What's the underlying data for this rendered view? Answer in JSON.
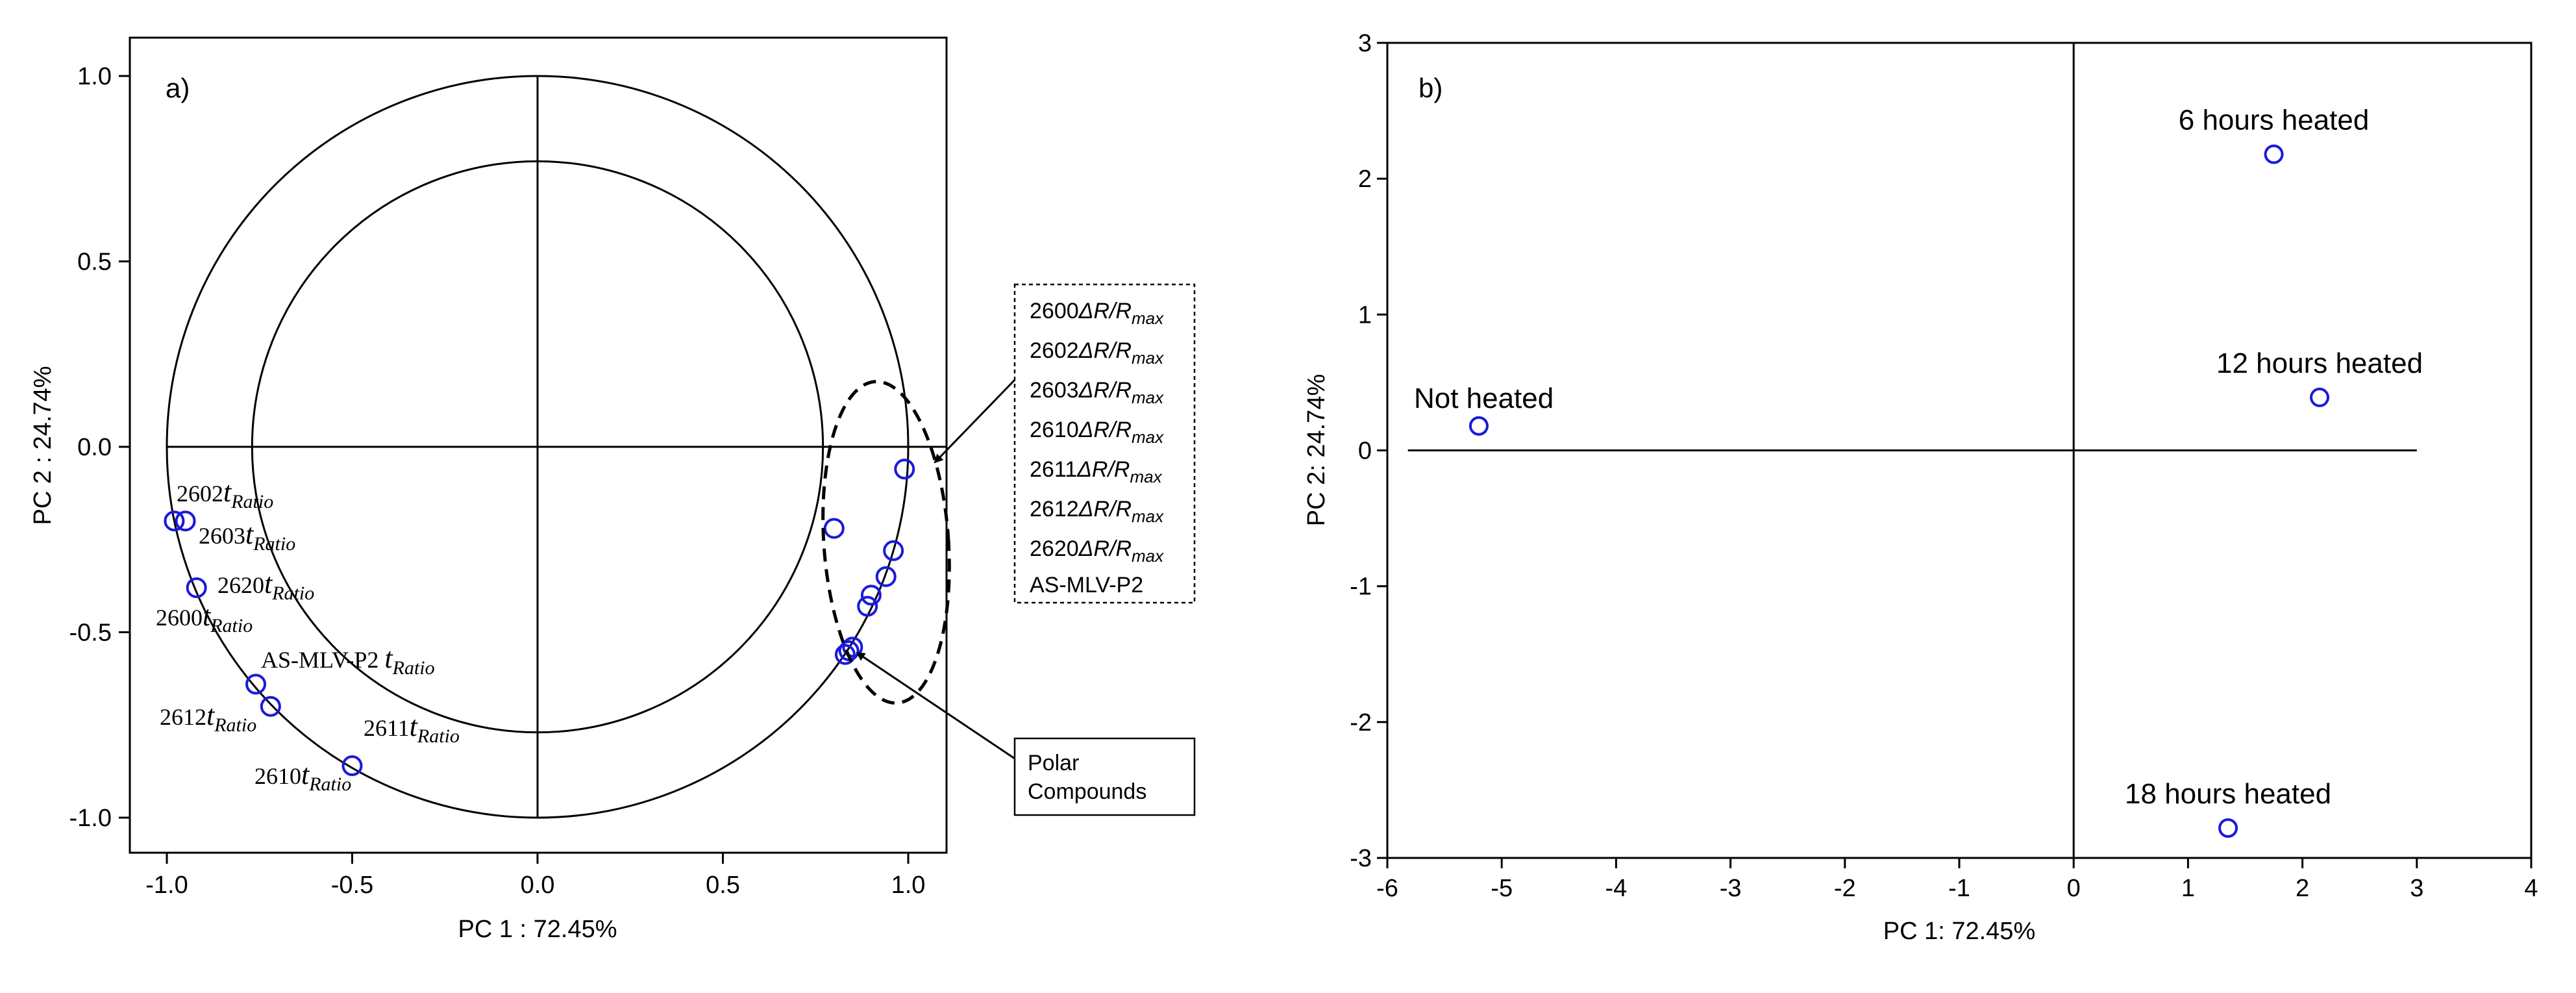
{
  "chart_data": [
    {
      "type": "scatter",
      "panel_label": "a)",
      "xlabel": "PC 1 : 72.45%",
      "ylabel": "PC 2 : 24.74%",
      "xlim": [
        -1.1,
        1.1
      ],
      "ylim": [
        -1.1,
        1.1
      ],
      "x_ticks": [
        "-1.0",
        "-0.5",
        "0.0",
        "0.5",
        "1.0"
      ],
      "y_ticks": [
        "1.0",
        "0.5",
        "0.0",
        "-0.5",
        "-1.0"
      ],
      "circles": [
        1.0,
        0.77
      ],
      "points": [
        {
          "x": -0.98,
          "y": -0.2
        },
        {
          "x": -0.95,
          "y": -0.2
        },
        {
          "x": -0.92,
          "y": -0.38
        },
        {
          "x": -0.76,
          "y": -0.64
        },
        {
          "x": -0.72,
          "y": -0.7
        },
        {
          "x": -0.5,
          "y": -0.86
        },
        {
          "x": 0.8,
          "y": -0.22
        },
        {
          "x": 0.99,
          "y": -0.06
        },
        {
          "x": 0.96,
          "y": -0.28
        },
        {
          "x": 0.94,
          "y": -0.35
        },
        {
          "x": 0.9,
          "y": -0.4
        },
        {
          "x": 0.89,
          "y": -0.43
        },
        {
          "x": 0.85,
          "y": -0.54
        },
        {
          "x": 0.84,
          "y": -0.55
        },
        {
          "x": 0.83,
          "y": -0.56
        }
      ],
      "point_labels": [
        {
          "base": "2602",
          "sub": "Ratio"
        },
        {
          "base": "2603",
          "sub": "Ratio"
        },
        {
          "base": "2620",
          "sub": "Ratio"
        },
        {
          "base": "2600",
          "sub": "Ratio"
        },
        {
          "base": "AS-MLV-P2 ",
          "sub": "Ratio"
        },
        {
          "base": "2612",
          "sub": "Ratio"
        },
        {
          "base": "2611",
          "sub": "Ratio"
        },
        {
          "base": "2610",
          "sub": "Ratio"
        }
      ],
      "legend_box": [
        {
          "base": "2600",
          "sub": "max"
        },
        {
          "base": "2602",
          "sub": "max"
        },
        {
          "base": "2603",
          "sub": "max"
        },
        {
          "base": "2610",
          "sub": "max"
        },
        {
          "base": "2611",
          "sub": "max"
        },
        {
          "base": "2612",
          "sub": "max"
        },
        {
          "base": "2620",
          "sub": "max"
        },
        {
          "base": "AS-MLV-P2",
          "sub": ""
        }
      ],
      "italic_t": "t",
      "delta_r": "ΔR/R",
      "annotation": [
        "Polar",
        "Compounds"
      ]
    },
    {
      "type": "scatter",
      "panel_label": "b)",
      "xlabel": "PC 1: 72.45%",
      "ylabel": "PC 2: 24.74%",
      "xlim": [
        -6,
        4
      ],
      "ylim": [
        -3,
        3
      ],
      "x_ticks": [
        "-6",
        "-5",
        "-4",
        "-3",
        "-2",
        "-1",
        "0",
        "1",
        "2",
        "3",
        "4"
      ],
      "y_ticks": [
        "3",
        "2",
        "1",
        "0",
        "-1",
        "-2",
        "-3"
      ],
      "points": [
        {
          "label": "Not heated",
          "x": -5.2,
          "y": 0.18
        },
        {
          "label": "6 hours heated",
          "x": 1.75,
          "y": 2.18
        },
        {
          "label": "12 hours heated",
          "x": 2.15,
          "y": 0.39
        },
        {
          "label": "18 hours heated",
          "x": 1.35,
          "y": -2.78
        }
      ]
    }
  ]
}
